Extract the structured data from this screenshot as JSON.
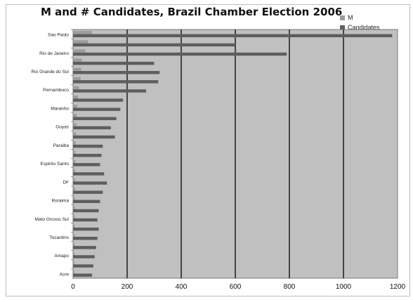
{
  "chart_data": {
    "type": "bar",
    "orientation": "horizontal",
    "title": "M and # Candidates, Brazil Chamber Election 2006",
    "xlabel": "",
    "ylabel": "",
    "xlim": [
      0,
      1200
    ],
    "xticks": [
      0,
      200,
      400,
      600,
      800,
      1000,
      1200
    ],
    "grid": true,
    "legend_position": "top-right",
    "categories": [
      "Sao Paolo",
      "",
      "Rio de Janeiro",
      "",
      "Rio Grande do Sul",
      "",
      "Pernambuco",
      "",
      "Maranho",
      "",
      "Goyas",
      "",
      "Paraiba",
      "",
      "Espiritu Santo",
      "",
      "DF",
      "",
      "Roraima",
      "",
      "Mato Grosso Sul",
      "",
      "Tocantins",
      "",
      "Amapo",
      "",
      "Acre"
    ],
    "series": [
      {
        "name": "M",
        "color": "#9c9c9c",
        "values": [
          70,
          55,
          45,
          32,
          30,
          28,
          22,
          18,
          16,
          14,
          12,
          11,
          10,
          9,
          9,
          8,
          8,
          8,
          7,
          7,
          7,
          6,
          6,
          6,
          5,
          5,
          5
        ]
      },
      {
        "name": "Candidates",
        "color": "#5e5e5e",
        "values": [
          1180,
          600,
          790,
          300,
          320,
          315,
          270,
          185,
          175,
          160,
          140,
          155,
          110,
          105,
          100,
          115,
          125,
          110,
          100,
          95,
          90,
          95,
          90,
          85,
          80,
          75,
          70
        ]
      }
    ]
  }
}
